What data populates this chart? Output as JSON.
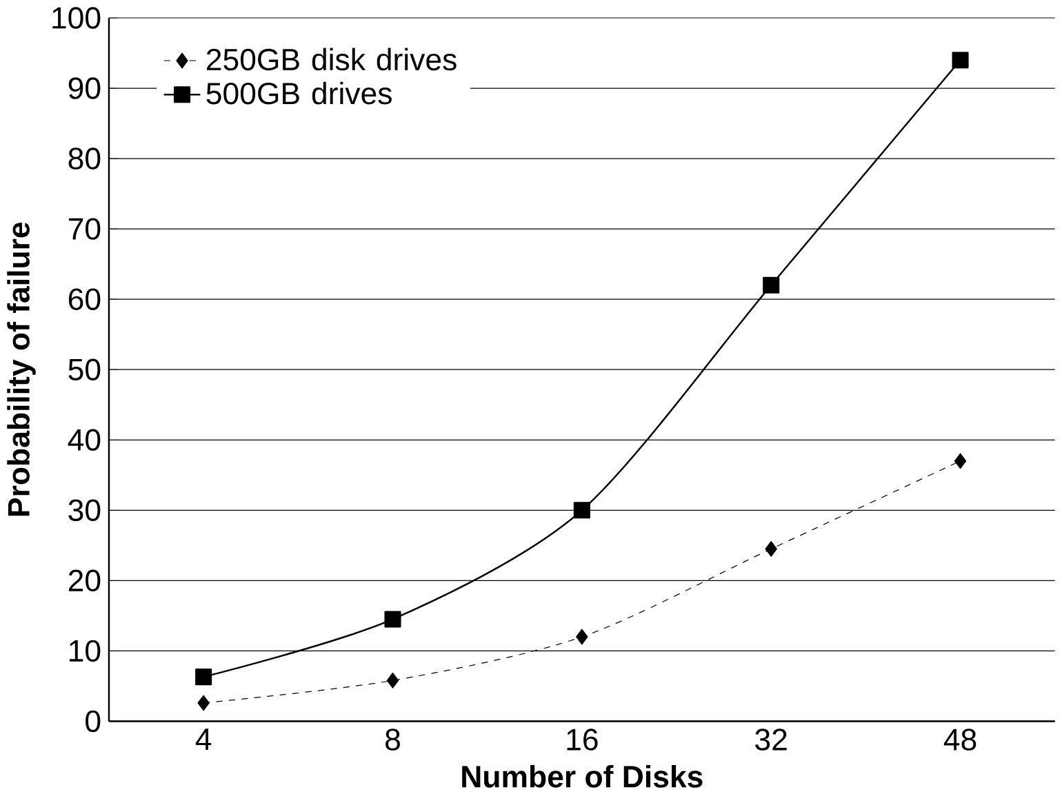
{
  "chart_data": {
    "type": "line",
    "xlabel": "Number of Disks",
    "ylabel": "Probability of failure",
    "categories": [
      "4",
      "8",
      "16",
      "32",
      "48"
    ],
    "series": [
      {
        "name": "250GB disk drives",
        "color": "#000000",
        "values": [
          2.6,
          5.8,
          12,
          24.5,
          37
        ],
        "marker": "diamond",
        "line_style": "dashed"
      },
      {
        "name": "500GB drives",
        "color": "#000000",
        "values": [
          6.3,
          14.5,
          30,
          62,
          94
        ],
        "marker": "square",
        "line_style": "solid"
      }
    ],
    "ylim": [
      0,
      100
    ],
    "yticks": [
      0,
      10,
      20,
      30,
      40,
      50,
      60,
      70,
      80,
      90,
      100
    ],
    "grid": "y",
    "legend": "top left"
  }
}
